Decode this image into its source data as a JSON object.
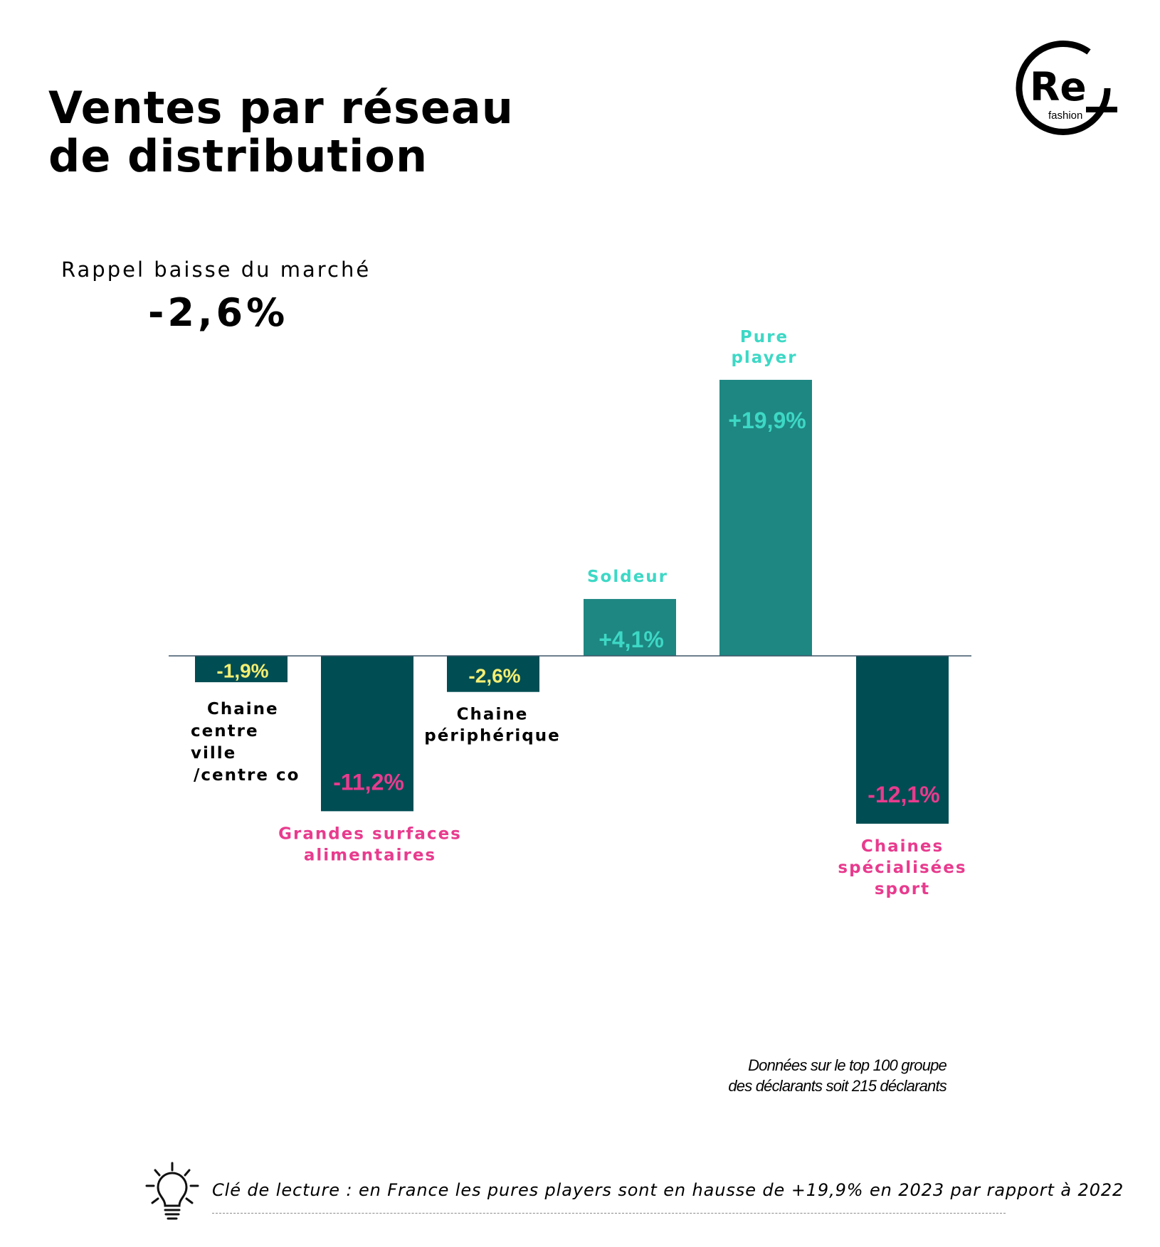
{
  "title": "Ventes par réseau de distribution",
  "logo": {
    "main": "Re",
    "sub": "fashion"
  },
  "market_recall": {
    "label": "Rappel baisse du marché",
    "value": "-2,6%"
  },
  "colors": {
    "positive_bar": "#1e8782",
    "negative_bar": "#004d53",
    "teal_text": "#3dd8c5",
    "yellow_text": "#f3ee72",
    "pink_text": "#e83b8e",
    "baseline": "#3d5566"
  },
  "chart_data": {
    "type": "bar",
    "categories": [
      "Chaine centre ville /centre co",
      "Grandes surfaces alimentaires",
      "Chaine périphérique",
      "Soldeur",
      "Pure player",
      "Chaines spécialisées sport"
    ],
    "values": [
      -1.9,
      -11.2,
      -2.6,
      4.1,
      19.9,
      -12.1
    ],
    "value_labels": [
      "-1,9%",
      "-11,2%",
      "-2,6%",
      "+4,1%",
      "+19,9%",
      "-12,1%"
    ],
    "category_label_lines": [
      [
        "Chaine",
        "centre",
        "ville",
        "/centre co"
      ],
      [
        "Grandes surfaces",
        "alimentaires"
      ],
      [
        "Chaine",
        "périphérique"
      ],
      [
        "Soldeur"
      ],
      [
        "Pure",
        "player"
      ],
      [
        "Chaines",
        "spécialisées",
        "sport"
      ]
    ],
    "category_label_colors": [
      "#000000",
      "#e83b8e",
      "#000000",
      "#3dd8c5",
      "#3dd8c5",
      "#e83b8e"
    ],
    "value_label_colors": [
      "#f3ee72",
      "#e83b8e",
      "#f3ee72",
      "#3dd8c5",
      "#3dd8c5",
      "#e83b8e"
    ],
    "xlabel": "",
    "ylabel": "",
    "grid": false,
    "legend": "none"
  },
  "note": {
    "line1": "Données sur le top 100 groupe",
    "line2": "des déclarants soit 215 déclarants"
  },
  "reading_key": {
    "icon": "lightbulb-icon",
    "text": "Clé de lecture : en France les pures players sont en hausse de +19,9% en 2023 par rapport à 2022"
  }
}
